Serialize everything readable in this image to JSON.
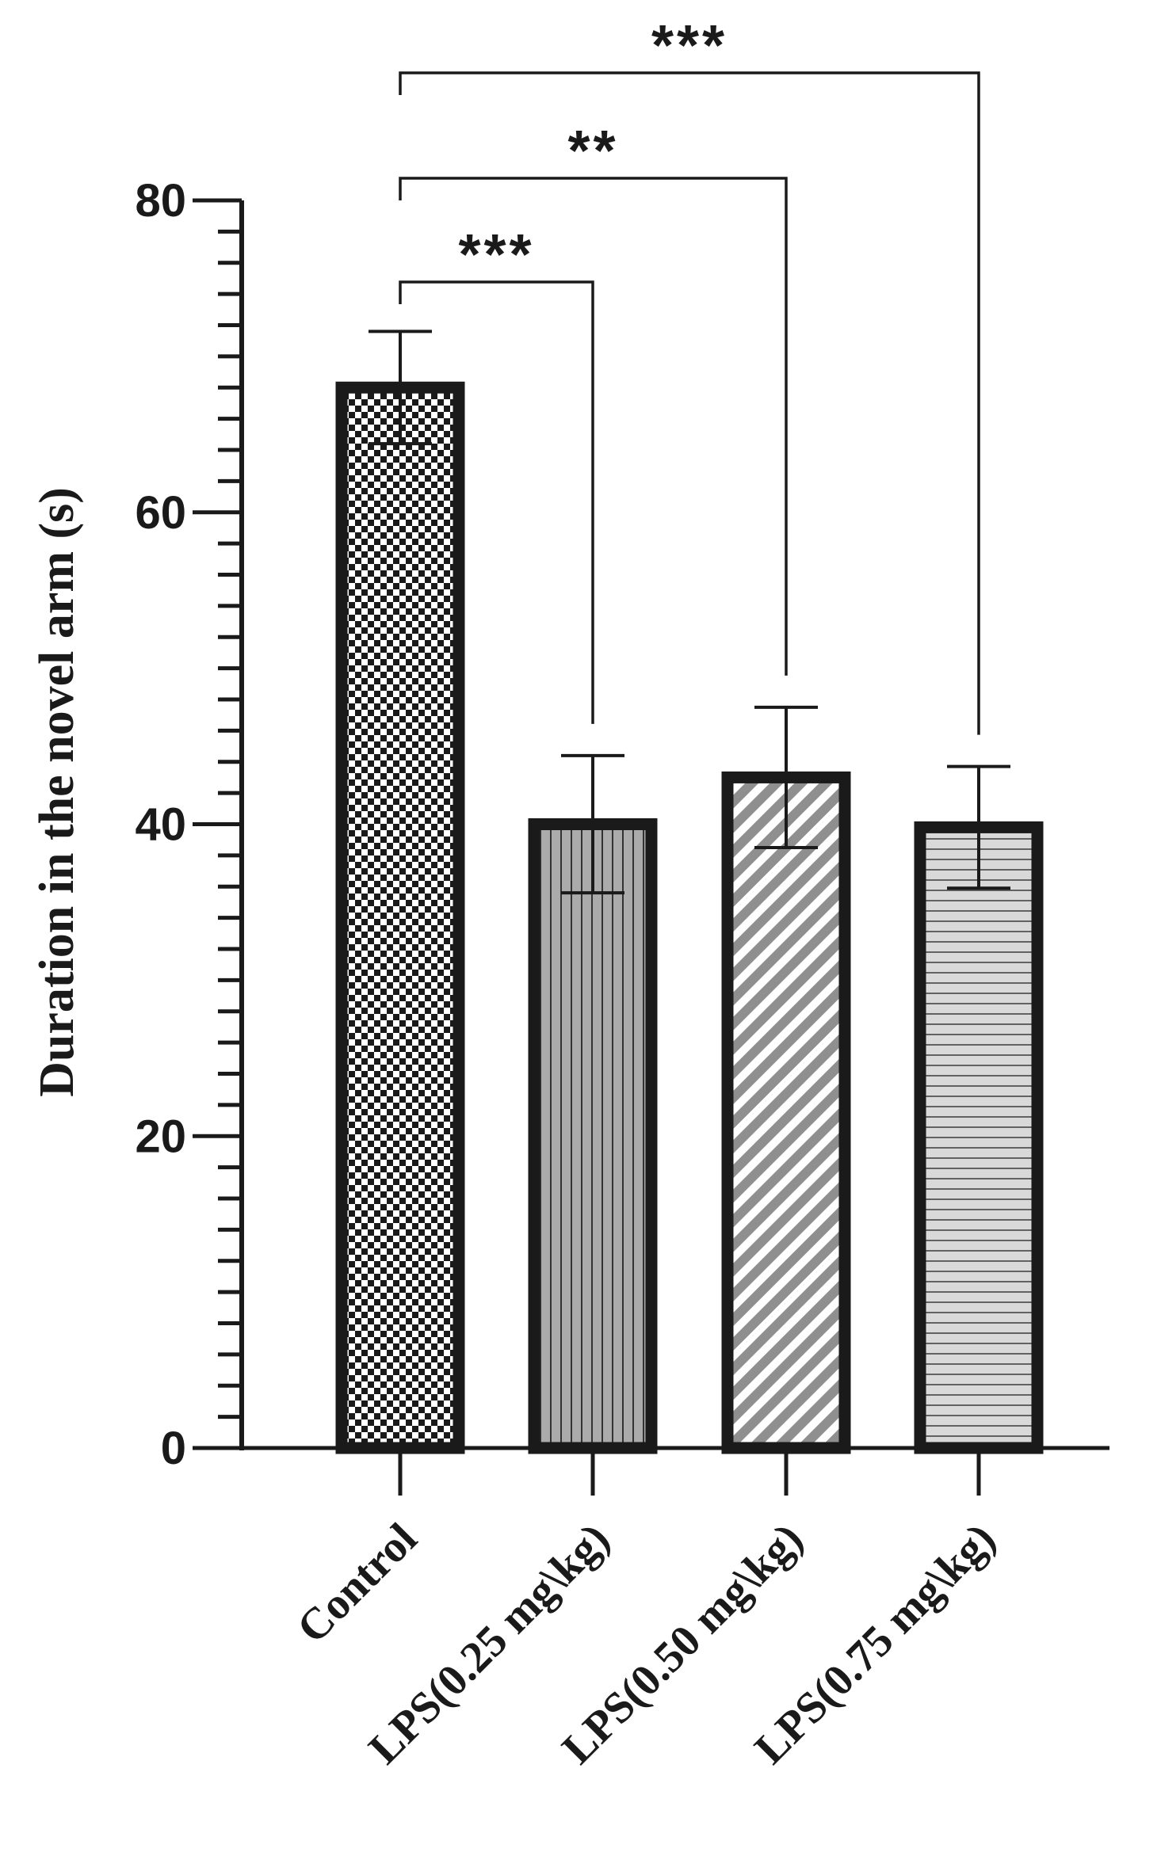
{
  "chart_data": {
    "type": "bar",
    "ylabel": "Duration in the novel arm (s)",
    "xlabel": "",
    "ylim": [
      0,
      80
    ],
    "yticks": [
      0,
      20,
      40,
      60,
      80
    ],
    "yticks_text": [
      "0",
      "20",
      "40",
      "60",
      "80"
    ],
    "minor_tick_step": 2,
    "grid": false,
    "categories": [
      "Control",
      "LPS(0.25 mg\\kg)",
      "LPS(0.50 mg\\kg)",
      "LPS(0.75 mg\\kg)"
    ],
    "values": [
      68,
      40,
      43,
      39.8
    ],
    "errors": [
      3.6,
      4.4,
      4.5,
      3.9
    ],
    "patterns": [
      "checkerboard",
      "vertical-lines",
      "diagonal-lines",
      "horizontal-lines"
    ],
    "comparisons": [
      {
        "from": 0,
        "to": 1,
        "label": "***"
      },
      {
        "from": 0,
        "to": 2,
        "label": "**"
      },
      {
        "from": 0,
        "to": 3,
        "label": "***"
      }
    ]
  }
}
